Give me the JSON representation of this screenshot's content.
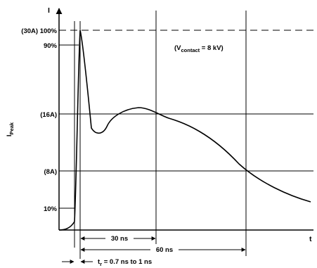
{
  "axes": {
    "y_label": "I",
    "x_label": "t",
    "side_label_main": "I",
    "side_label_sub": "Peak"
  },
  "levels": {
    "peak": "(30A) 100%",
    "ninety": "90%",
    "i16": "(16A)",
    "i8": "(8A)",
    "ten": "10%"
  },
  "condition": {
    "open": "(V",
    "sub": "contact",
    "close": " = 8 kV)"
  },
  "timings": {
    "t30": "30 ns",
    "t60": "60 ns",
    "rise_main": "t",
    "rise_sub": "r",
    "rise_rest": " = 0.7 ns to 1 ns"
  }
}
